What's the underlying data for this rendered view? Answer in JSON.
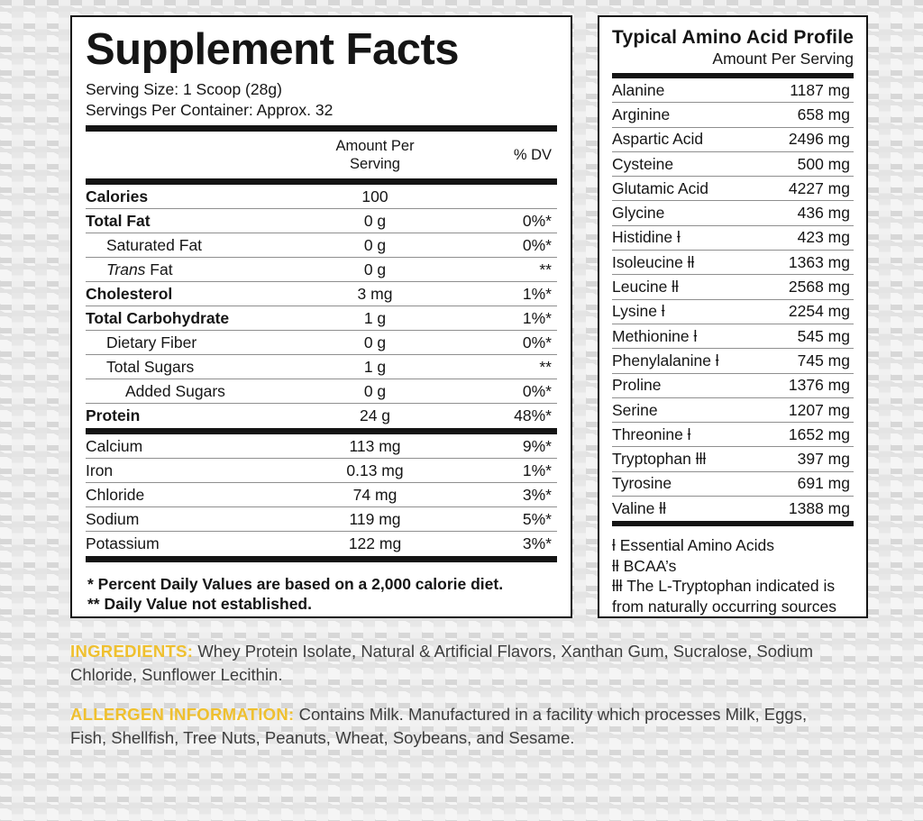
{
  "colors": {
    "accent_yellow": "#EFC02F",
    "panel_black": "#141414",
    "thin_line_gray": "#8F8F8F",
    "body_text_gray": "#3D3D3D",
    "background_gray": "#E7E7E7"
  },
  "supplement_facts": {
    "title": "Supplement Facts",
    "serving_size": "Serving Size: 1 Scoop (28g)",
    "servings_per_container": "Servings Per Container: Approx. 32",
    "col_amount_line1": "Amount Per",
    "col_amount_line2": "Serving",
    "col_dv": "% DV",
    "rows": [
      {
        "cls": "b",
        "prefix": "",
        "label": "Calories",
        "amount": "100",
        "dv": ""
      },
      {
        "cls": "b",
        "prefix": "",
        "label": "Total Fat",
        "amount": "0 g",
        "dv": "0%*"
      },
      {
        "cls": "in1",
        "prefix": "",
        "label": "Saturated Fat",
        "amount": "0 g",
        "dv": "0%*"
      },
      {
        "cls": "in1",
        "prefix": "Trans",
        "label": " Fat",
        "amount": "0 g",
        "dv": "**"
      },
      {
        "cls": "b",
        "prefix": "",
        "label": "Cholesterol",
        "amount": "3 mg",
        "dv": "1%*"
      },
      {
        "cls": "b",
        "prefix": "",
        "label": "Total Carbohydrate",
        "amount": "1 g",
        "dv": "1%*"
      },
      {
        "cls": "in1",
        "prefix": "",
        "label": "Dietary Fiber",
        "amount": "0 g",
        "dv": "0%*"
      },
      {
        "cls": "in1",
        "prefix": "",
        "label": "Total Sugars",
        "amount": "1 g",
        "dv": "**"
      },
      {
        "cls": "in2",
        "prefix": "",
        "label": "Added Sugars",
        "amount": "0 g",
        "dv": "0%*"
      },
      {
        "cls": "b",
        "prefix": "",
        "label": "Protein",
        "amount": "24 g",
        "dv": "48%*"
      }
    ],
    "minerals": [
      {
        "cls": "",
        "prefix": "",
        "label": "Calcium",
        "amount": "113 mg",
        "dv": "9%*"
      },
      {
        "cls": "",
        "prefix": "",
        "label": "Iron",
        "amount": "0.13 mg",
        "dv": "1%*"
      },
      {
        "cls": "",
        "prefix": "",
        "label": "Chloride",
        "amount": "74 mg",
        "dv": "3%*"
      },
      {
        "cls": "",
        "prefix": "",
        "label": "Sodium",
        "amount": "119 mg",
        "dv": "5%*"
      },
      {
        "cls": "",
        "prefix": "",
        "label": "Potassium",
        "amount": "122 mg",
        "dv": "3%*"
      }
    ],
    "footnotes": [
      "* Percent Daily Values are based on a 2,000 calorie diet.",
      "** Daily Value not established."
    ]
  },
  "amino_profile": {
    "title": "Typical Amino Acid Profile",
    "subtitle": "Amount Per Serving",
    "rows": [
      {
        "label": "Alanine",
        "amount": "1187 mg"
      },
      {
        "label": "Arginine",
        "amount": "658 mg"
      },
      {
        "label": "Aspartic Acid",
        "amount": "2496 mg"
      },
      {
        "label": "Cysteine",
        "amount": "500 mg"
      },
      {
        "label": "Glutamic Acid",
        "amount": "4227 mg"
      },
      {
        "label": "Glycine",
        "amount": "436 mg"
      },
      {
        "label": "Histidine ƚ",
        "amount": "423 mg"
      },
      {
        "label": "Isoleucine ƚƚ",
        "amount": "1363 mg"
      },
      {
        "label": "Leucine ƚƚ",
        "amount": "2568 mg"
      },
      {
        "label": "Lysine ƚ",
        "amount": "2254 mg"
      },
      {
        "label": "Methionine ƚ",
        "amount": "545 mg"
      },
      {
        "label": "Phenylalanine ƚ",
        "amount": "745 mg"
      },
      {
        "label": "Proline",
        "amount": "1376 mg"
      },
      {
        "label": "Serine",
        "amount": "1207 mg"
      },
      {
        "label": "Threonine ƚ",
        "amount": "1652 mg"
      },
      {
        "label": "Tryptophan ƚƚƚ",
        "amount": "397 mg"
      },
      {
        "label": "Tyrosine",
        "amount": "691 mg"
      },
      {
        "label": "Valine ƚƚ",
        "amount": "1388 mg"
      }
    ],
    "footnotes": [
      "ƚ Essential Amino Acids",
      "ƚƚ BCAA’s",
      "ƚƚƚ The L-Tryptophan indicated is from naturally occurring sources of protein."
    ]
  },
  "ingredients": {
    "label": "INGREDIENTS:",
    "text": "Whey Protein Isolate, Natural & Artificial Flavors, Xanthan Gum, Sucralose, Sodium Chloride, Sunflower Lecithin."
  },
  "allergen": {
    "label": "ALLERGEN INFORMATION:",
    "text": "Contains Milk. Manufactured in a facility which processes Milk, Eggs, Fish, Shellfish, Tree Nuts, Peanuts, Wheat, Soybeans, and Sesame."
  }
}
